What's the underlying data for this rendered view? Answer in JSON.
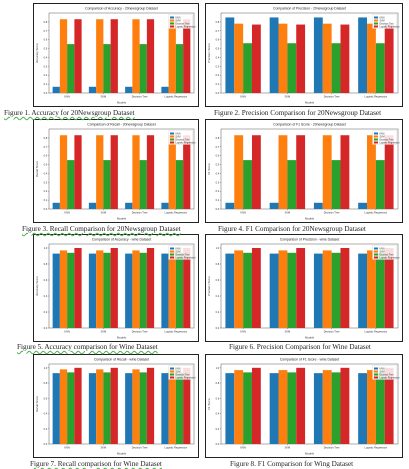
{
  "colors": {
    "knn": "#1f77b4",
    "svm": "#ff7f0e",
    "decision_tree": "#2ca02c",
    "logistic_regression": "#d62728"
  },
  "captions": [
    "Figure 1. Accuracy for 20Newsgroup Dataset",
    "Figure 2. Precision Comparison for 20Newsgroup Dataset",
    "Figure 3. Recall Comparison for 20Newsgroup Dataset",
    "Figure 4. F1 Comparison for 20Newsgroup Dataset",
    "Figure 5. Accuracy comparison for Wine Dataset",
    "Figure 6. Precision Comparison for Wine Dataset",
    "Figure 7. Recall comparison for Wine Dataset",
    "Figure 8. F1 Comparison for Wing Dataset"
  ],
  "chart_data": [
    {
      "type": "bar",
      "title": "Comparison of Accuracy - 20newsgroup Dataset",
      "xlabel": "Models",
      "ylabel": "Accuracy Score",
      "categories": [
        "KNN",
        "SVM",
        "Decision Tree",
        "Logistic Regression"
      ],
      "ylim": [
        0,
        0.9
      ],
      "yticks": [
        "0.0",
        "0.1",
        "0.2",
        "0.3",
        "0.4",
        "0.5",
        "0.6",
        "0.7",
        "0.8"
      ],
      "legend": "top-right",
      "series": [
        {
          "name": "KNN",
          "values": [
            0.07,
            0.07,
            0.07,
            0.07
          ]
        },
        {
          "name": "SVM",
          "values": [
            0.83,
            0.83,
            0.83,
            0.83
          ]
        },
        {
          "name": "Decision Tree",
          "values": [
            0.55,
            0.55,
            0.55,
            0.55
          ]
        },
        {
          "name": "Logistic Regression",
          "values": [
            0.83,
            0.83,
            0.83,
            0.83
          ]
        }
      ]
    },
    {
      "type": "bar",
      "title": "Comparison of Precision - 20newsgroup Dataset",
      "xlabel": "Models",
      "ylabel": "Precision Score",
      "categories": [
        "KNN",
        "SVM",
        "Decision Tree",
        "Logistic Regression"
      ],
      "ylim": [
        0,
        0.9
      ],
      "yticks": [
        "0.0",
        "0.1",
        "0.2",
        "0.3",
        "0.4",
        "0.5",
        "0.6",
        "0.7",
        "0.8"
      ],
      "legend": "top-right",
      "series": [
        {
          "name": "KNN",
          "values": [
            0.85,
            0.85,
            0.85,
            0.85
          ]
        },
        {
          "name": "SVM",
          "values": [
            0.78,
            0.78,
            0.78,
            0.78
          ]
        },
        {
          "name": "Decision Tree",
          "values": [
            0.56,
            0.56,
            0.56,
            0.56
          ]
        },
        {
          "name": "Logistic Regression",
          "values": [
            0.77,
            0.77,
            0.77,
            0.77
          ]
        }
      ]
    },
    {
      "type": "bar",
      "title": "Comparison of Recall - 20newsgroup Dataset",
      "xlabel": "Models",
      "ylabel": "Recall Score",
      "categories": [
        "KNN",
        "SVM",
        "Decision Tree",
        "Logistic Regression"
      ],
      "ylim": [
        0,
        0.9
      ],
      "yticks": [
        "0.0",
        "0.1",
        "0.2",
        "0.3",
        "0.4",
        "0.5",
        "0.6",
        "0.7",
        "0.8"
      ],
      "legend": "top-right",
      "series": [
        {
          "name": "KNN",
          "values": [
            0.07,
            0.07,
            0.07,
            0.07
          ]
        },
        {
          "name": "SVM",
          "values": [
            0.83,
            0.83,
            0.83,
            0.83
          ]
        },
        {
          "name": "Decision Tree",
          "values": [
            0.55,
            0.55,
            0.55,
            0.55
          ]
        },
        {
          "name": "Logistic Regression",
          "values": [
            0.83,
            0.83,
            0.83,
            0.83
          ]
        }
      ]
    },
    {
      "type": "bar",
      "title": "Comparison of F1 Score - 20newsgroup Dataset",
      "xlabel": "Models",
      "ylabel": "F1 Score",
      "categories": [
        "KNN",
        "SVM",
        "Decision Tree",
        "Logistic Regression"
      ],
      "ylim": [
        0,
        0.9
      ],
      "yticks": [
        "0.0",
        "0.1",
        "0.2",
        "0.3",
        "0.4",
        "0.5",
        "0.6",
        "0.7",
        "0.8"
      ],
      "legend": "top-right",
      "series": [
        {
          "name": "KNN",
          "values": [
            0.07,
            0.07,
            0.07,
            0.07
          ]
        },
        {
          "name": "SVM",
          "values": [
            0.83,
            0.83,
            0.83,
            0.83
          ]
        },
        {
          "name": "Decision Tree",
          "values": [
            0.55,
            0.55,
            0.55,
            0.55
          ]
        },
        {
          "name": "Logistic Regression",
          "values": [
            0.83,
            0.83,
            0.83,
            0.83
          ]
        }
      ]
    },
    {
      "type": "bar",
      "title": "Comparison of Accuracy - wine Dataset",
      "xlabel": "Models",
      "ylabel": "Accuracy Score",
      "categories": [
        "KNN",
        "SVM",
        "Decision Tree",
        "Logistic Regression"
      ],
      "ylim": [
        0,
        1.05
      ],
      "yticks": [
        "0.0",
        "0.2",
        "0.4",
        "0.6",
        "0.8",
        "1.0"
      ],
      "legend": "top-right",
      "series": [
        {
          "name": "KNN",
          "values": [
            0.93,
            0.93,
            0.93,
            0.93
          ]
        },
        {
          "name": "SVM",
          "values": [
            0.97,
            0.97,
            0.97,
            0.97
          ]
        },
        {
          "name": "Decision Tree",
          "values": [
            0.94,
            0.94,
            0.94,
            0.94
          ]
        },
        {
          "name": "Logistic Regression",
          "values": [
            1.0,
            1.0,
            1.0,
            1.0
          ]
        }
      ]
    },
    {
      "type": "bar",
      "title": "Comparison of Precision - wine Dataset",
      "xlabel": "Models",
      "ylabel": "Precision Score",
      "categories": [
        "KNN",
        "SVM",
        "Decision Tree",
        "Logistic Regression"
      ],
      "ylim": [
        0,
        1.05
      ],
      "yticks": [
        "0.0",
        "0.2",
        "0.4",
        "0.6",
        "0.8",
        "1.0"
      ],
      "legend": "top-right",
      "series": [
        {
          "name": "KNN",
          "values": [
            0.93,
            0.93,
            0.93,
            0.93
          ]
        },
        {
          "name": "SVM",
          "values": [
            0.97,
            0.97,
            0.97,
            0.97
          ]
        },
        {
          "name": "Decision Tree",
          "values": [
            0.94,
            0.94,
            0.94,
            0.94
          ]
        },
        {
          "name": "Logistic Regression",
          "values": [
            1.0,
            1.0,
            1.0,
            1.0
          ]
        }
      ]
    },
    {
      "type": "bar",
      "title": "Comparison of Recall - wine Dataset",
      "xlabel": "Models",
      "ylabel": "Recall Score",
      "categories": [
        "KNN",
        "SVM",
        "Decision Tree",
        "Logistic Regression"
      ],
      "ylim": [
        0,
        1.05
      ],
      "yticks": [
        "0.0",
        "0.2",
        "0.4",
        "0.6",
        "0.8",
        "1.0"
      ],
      "legend": "top-right",
      "series": [
        {
          "name": "KNN",
          "values": [
            0.93,
            0.93,
            0.93,
            0.93
          ]
        },
        {
          "name": "SVM",
          "values": [
            0.98,
            0.98,
            0.98,
            0.98
          ]
        },
        {
          "name": "Decision Tree",
          "values": [
            0.94,
            0.94,
            0.94,
            0.94
          ]
        },
        {
          "name": "Logistic Regression",
          "values": [
            1.0,
            1.0,
            1.0,
            1.0
          ]
        }
      ]
    },
    {
      "type": "bar",
      "title": "Comparison of F1 Score - wine Dataset",
      "xlabel": "Models",
      "ylabel": "F1 Score",
      "categories": [
        "KNN",
        "SVM",
        "Decision Tree",
        "Logistic Regression"
      ],
      "ylim": [
        0,
        1.05
      ],
      "yticks": [
        "0.0",
        "0.2",
        "0.4",
        "0.6",
        "0.8",
        "1.0"
      ],
      "legend": "top-right",
      "series": [
        {
          "name": "KNN",
          "values": [
            0.93,
            0.93,
            0.93,
            0.93
          ]
        },
        {
          "name": "SVM",
          "values": [
            0.97,
            0.97,
            0.97,
            0.97
          ]
        },
        {
          "name": "Decision Tree",
          "values": [
            0.94,
            0.94,
            0.94,
            0.94
          ]
        },
        {
          "name": "Logistic Regression",
          "values": [
            1.0,
            1.0,
            1.0,
            1.0
          ]
        }
      ]
    }
  ]
}
